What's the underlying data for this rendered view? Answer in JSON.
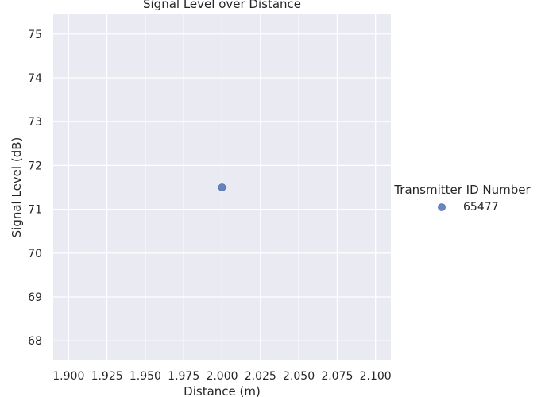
{
  "chart_data": {
    "type": "scatter",
    "title": "Signal Level over Distance",
    "xlabel": "Distance (m)",
    "ylabel": "Signal Level (dB)",
    "xlim": [
      1.89,
      2.11
    ],
    "ylim": [
      67.55,
      75.45
    ],
    "x_ticks": [
      "1.900",
      "1.925",
      "1.950",
      "1.975",
      "2.000",
      "2.025",
      "2.050",
      "2.075",
      "2.100"
    ],
    "y_ticks": [
      "68",
      "69",
      "70",
      "71",
      "72",
      "73",
      "74",
      "75"
    ],
    "grid": true,
    "legend": {
      "title": "Transmitter ID Number",
      "placement": "right",
      "entries": [
        "65477"
      ]
    },
    "series": [
      {
        "name": "65477",
        "color": "#4c72b0",
        "points": [
          {
            "x": 2.0,
            "y": 71.5
          }
        ]
      }
    ]
  }
}
